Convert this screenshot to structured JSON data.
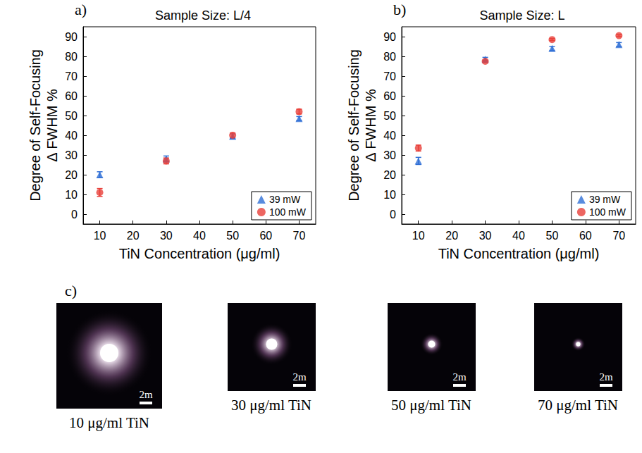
{
  "chart_data": [
    {
      "type": "scatter",
      "panel_label": "a)",
      "title": "Sample Size: L/4",
      "xlabel": "TiN Concentration (μg/ml)",
      "ylabel": "Degree of Self-Focusing\nΔ FWHM %",
      "x": [
        10,
        30,
        50,
        70
      ],
      "xlim": [
        5,
        75
      ],
      "xticks": [
        10,
        20,
        30,
        40,
        50,
        60,
        70
      ],
      "ylim": [
        -5,
        95
      ],
      "yticks": [
        0,
        10,
        20,
        30,
        40,
        50,
        60,
        70,
        80,
        90
      ],
      "grid": false,
      "legend": "lower right",
      "series": [
        {
          "name": "39 mW",
          "color": "#2f6fd6",
          "marker": "triangle",
          "values": [
            20,
            28,
            39.5,
            48.5
          ],
          "errors": [
            1.5,
            1.5,
            1.2,
            1
          ]
        },
        {
          "name": "100 mW",
          "color": "#e8403a",
          "marker": "circle",
          "values": [
            11,
            27,
            40,
            52
          ],
          "errors": [
            2,
            1.5,
            1.2,
            1.2
          ]
        }
      ]
    },
    {
      "type": "scatter",
      "panel_label": "b)",
      "title": "Sample Size: L",
      "xlabel": "TiN Concentration (μg/ml)",
      "ylabel": "Degree of Self-Focusing\nΔ FWHM %",
      "x": [
        10,
        30,
        50,
        70
      ],
      "xlim": [
        5,
        75
      ],
      "xticks": [
        10,
        20,
        30,
        40,
        50,
        60,
        70
      ],
      "ylim": [
        -5,
        95
      ],
      "yticks": [
        0,
        10,
        20,
        30,
        40,
        50,
        60,
        70,
        80,
        90
      ],
      "grid": false,
      "legend": "lower right",
      "series": [
        {
          "name": "39 mW",
          "color": "#2f6fd6",
          "marker": "triangle",
          "values": [
            27,
            78.5,
            84,
            86
          ],
          "errors": [
            1.8,
            1,
            1,
            1
          ]
        },
        {
          "name": "100 mW",
          "color": "#e8403a",
          "marker": "circle",
          "values": [
            33.5,
            77.5,
            88.5,
            90.5
          ],
          "errors": [
            1.5,
            0.5,
            0.5,
            0.5
          ]
        }
      ]
    }
  ],
  "panel_c": {
    "label": "c)",
    "images": [
      {
        "caption": "10 μg/ml TiN",
        "scale_bar": "2m"
      },
      {
        "caption": "30 μg/ml TiN",
        "scale_bar": "2m"
      },
      {
        "caption": "50 μg/ml TiN",
        "scale_bar": "2m"
      },
      {
        "caption": "70 μg/ml TiN",
        "scale_bar": "2m"
      }
    ]
  }
}
